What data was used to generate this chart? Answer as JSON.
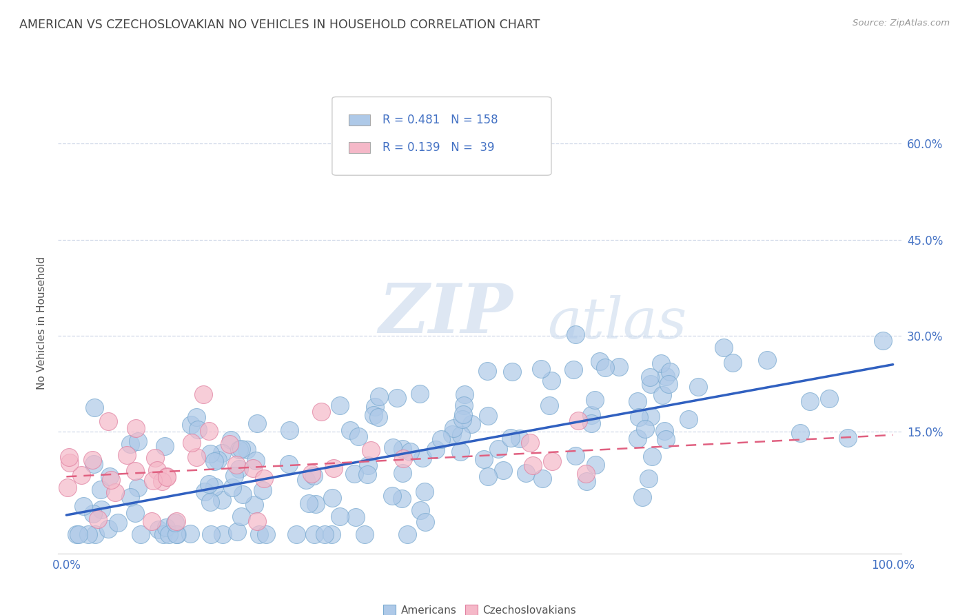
{
  "title": "AMERICAN VS CZECHOSLOVAKIAN NO VEHICLES IN HOUSEHOLD CORRELATION CHART",
  "source": "Source: ZipAtlas.com",
  "ylabel": "No Vehicles in Household",
  "xlim": [
    -0.01,
    1.01
  ],
  "ylim": [
    -0.04,
    0.68
  ],
  "xtick_positions": [
    0.0,
    0.1,
    0.2,
    0.3,
    0.4,
    0.5,
    0.6,
    0.7,
    0.8,
    0.9,
    1.0
  ],
  "xtick_labels": [
    "0.0%",
    "",
    "",
    "",
    "",
    "",
    "",
    "",
    "",
    "",
    "100.0%"
  ],
  "ytick_positions": [
    0.0,
    0.15,
    0.3,
    0.45,
    0.6
  ],
  "ytick_labels_right": [
    "",
    "15.0%",
    "30.0%",
    "45.0%",
    "60.0%"
  ],
  "background_color": "#ffffff",
  "grid_color": "#d0d8e8",
  "american_dot_color": "#aec9e8",
  "american_dot_edge": "#7aaad0",
  "czech_dot_color": "#f5b8c8",
  "czech_dot_edge": "#e080a0",
  "american_line_color": "#3060c0",
  "czech_line_color": "#e06080",
  "tick_label_color": "#4472c4",
  "title_color": "#444444",
  "watermark_zip": "ZIP",
  "watermark_atlas": "atlas",
  "legend_R1": "0.481",
  "legend_N1": "158",
  "legend_R2": "0.139",
  "legend_N2": "39",
  "am_line_x0": 0.0,
  "am_line_x1": 1.0,
  "am_line_y0": 0.02,
  "am_line_y1": 0.255,
  "cz_line_x0": 0.0,
  "cz_line_x1": 1.0,
  "cz_line_y0": 0.08,
  "cz_line_y1": 0.145
}
